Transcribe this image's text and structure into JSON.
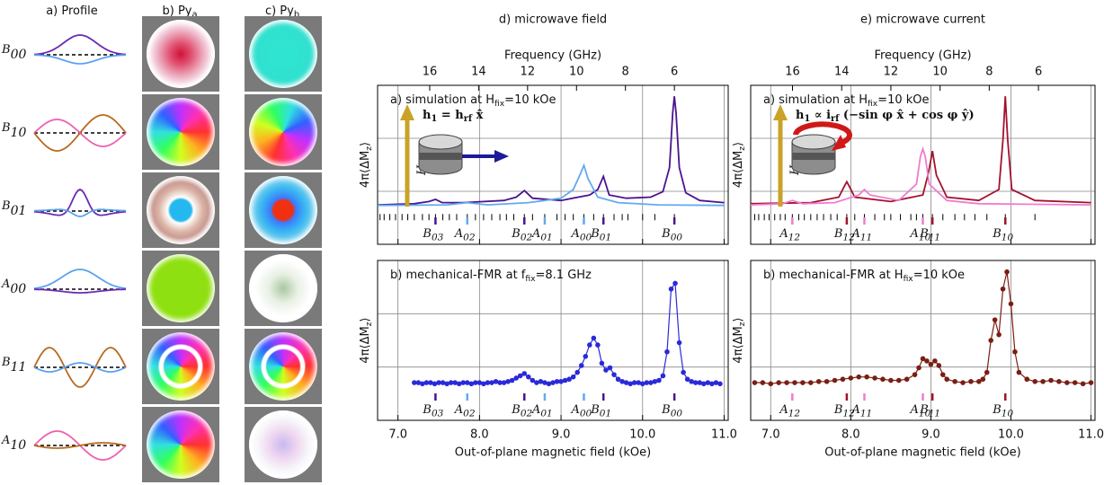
{
  "profile_panel": {
    "headers": [
      [
        "a) Profile"
      ],
      [
        "b) Py",
        "a"
      ],
      [
        "c) Py",
        "b"
      ]
    ],
    "modes": [
      {
        "label": [
          "B",
          "00"
        ],
        "color": "#6b2bb5"
      },
      {
        "label": [
          "B",
          "10"
        ],
        "color": "#b86a1e"
      },
      {
        "label": [
          "B",
          "01"
        ],
        "color": "#6b2bb5"
      },
      {
        "label": [
          "A",
          "00"
        ],
        "color": "#5aa2f2"
      },
      {
        "label": [
          "B",
          "11"
        ],
        "color": "#b86a1e"
      },
      {
        "label": [
          "A",
          "10"
        ],
        "color": "#f060b0"
      }
    ]
  },
  "chart_data": [
    {
      "type": "line",
      "title": "d) microwave field",
      "x2label": "Frequency (GHz)",
      "x2lim": [
        18.13,
        3.8
      ],
      "x2ticks": [
        16,
        14,
        12,
        10,
        8,
        6
      ],
      "xlabel": "Out-of-plane magnetic field (kOe)",
      "xlim": [
        6.75,
        11.05
      ],
      "xticks": [
        {
          "value": 7,
          "label": "7.0"
        },
        {
          "value": 8,
          "label": "8.0"
        },
        {
          "value": 9,
          "label": "9.0"
        },
        {
          "value": 10,
          "label": "10.0"
        },
        {
          "value": 11,
          "label": "11.0"
        }
      ],
      "ylabel": [
        "4π⟨ΔM",
        "z",
        "⟩"
      ],
      "grid": true,
      "subplots": [
        {
          "type": "line",
          "annotation": [
            "a) simulation at H",
            "fix",
            "=10 kOe"
          ],
          "ylim": [
            -0.35,
            1.1
          ],
          "field_label": [
            "h",
            "1",
            " = h",
            "rf",
            " x̂"
          ],
          "field_color": "#3a3ae0",
          "hext_label": [
            "H",
            "ext"
          ],
          "series": [
            {
              "color": "#4a1590",
              "x": [
                6.75,
                7.2,
                7.38,
                7.46,
                7.54,
                7.8,
                8.3,
                8.45,
                8.55,
                8.65,
                9.0,
                9.35,
                9.45,
                9.52,
                9.59,
                9.8,
                10.1,
                10.25,
                10.33,
                10.37,
                10.39,
                10.41,
                10.45,
                10.53,
                10.7,
                11.0
              ],
              "values": [
                0.01,
                0.02,
                0.04,
                0.06,
                0.03,
                0.03,
                0.05,
                0.08,
                0.14,
                0.07,
                0.05,
                0.1,
                0.15,
                0.27,
                0.1,
                0.07,
                0.08,
                0.13,
                0.35,
                0.85,
                1.0,
                0.85,
                0.35,
                0.12,
                0.05,
                0.03
              ]
            },
            {
              "color": "#62aaf0",
              "x": [
                6.75,
                7.6,
                7.85,
                8.1,
                8.6,
                8.8,
                9.0,
                9.15,
                9.23,
                9.28,
                9.33,
                9.45,
                9.7,
                10.2,
                11.0
              ],
              "values": [
                0.005,
                0.01,
                0.03,
                0.01,
                0.03,
                0.05,
                0.07,
                0.15,
                0.28,
                0.37,
                0.25,
                0.08,
                0.03,
                0.01,
                0.005
              ]
            }
          ],
          "rug": [
            6.78,
            6.83,
            6.9,
            6.97,
            7.05,
            7.12,
            7.2,
            7.3,
            7.38,
            7.46,
            7.55,
            7.63,
            7.72,
            7.85,
            7.95,
            8.05,
            8.15,
            8.25,
            8.33,
            8.42,
            8.55,
            8.65,
            8.8,
            8.95,
            9.05,
            9.15,
            9.28,
            9.4,
            9.52,
            9.65,
            9.75,
            9.82,
            10.0,
            10.15,
            10.39
          ],
          "mode_labels": [
            {
              "label": [
                "B",
                "03"
              ],
              "x": 7.46,
              "color": "#4a1590"
            },
            {
              "label": [
                "A",
                "02"
              ],
              "x": 7.85,
              "color": "#62aaf0"
            },
            {
              "label": [
                "B",
                "02"
              ],
              "x": 8.55,
              "color": "#4a1590"
            },
            {
              "label": [
                "A",
                "01"
              ],
              "x": 8.8,
              "color": "#62aaf0"
            },
            {
              "label": [
                "A",
                "00"
              ],
              "x": 9.28,
              "color": "#62aaf0"
            },
            {
              "label": [
                "B",
                "01"
              ],
              "x": 9.52,
              "color": "#4a1590"
            },
            {
              "label": [
                "B",
                "00"
              ],
              "x": 10.39,
              "color": "#4a1590"
            }
          ]
        },
        {
          "type": "line",
          "markers": true,
          "annotation": [
            "b) mechanical-FMR at f",
            "fix",
            "=8.1 GHz"
          ],
          "ylim": [
            -0.3,
            1.1
          ],
          "series": [
            {
              "color": "#2a2ad8",
              "x": [
                7.2,
                7.25,
                7.3,
                7.35,
                7.4,
                7.45,
                7.5,
                7.55,
                7.6,
                7.65,
                7.7,
                7.75,
                7.8,
                7.85,
                7.9,
                7.95,
                8.0,
                8.05,
                8.1,
                8.15,
                8.2,
                8.25,
                8.3,
                8.35,
                8.4,
                8.45,
                8.5,
                8.55,
                8.6,
                8.65,
                8.7,
                8.75,
                8.8,
                8.85,
                8.9,
                8.95,
                9.0,
                9.05,
                9.1,
                9.15,
                9.2,
                9.25,
                9.3,
                9.35,
                9.4,
                9.45,
                9.5,
                9.55,
                9.6,
                9.65,
                9.7,
                9.75,
                9.8,
                9.85,
                9.9,
                9.95,
                10.0,
                10.05,
                10.1,
                10.15,
                10.2,
                10.25,
                10.3,
                10.35,
                10.4,
                10.45,
                10.5,
                10.55,
                10.6,
                10.65,
                10.7,
                10.75,
                10.8,
                10.85,
                10.9,
                10.95
              ],
              "values": [
                0.03,
                0.03,
                0.02,
                0.03,
                0.03,
                0.02,
                0.03,
                0.03,
                0.02,
                0.03,
                0.03,
                0.02,
                0.03,
                0.03,
                0.02,
                0.03,
                0.03,
                0.02,
                0.03,
                0.03,
                0.04,
                0.03,
                0.03,
                0.04,
                0.05,
                0.07,
                0.09,
                0.11,
                0.08,
                0.05,
                0.03,
                0.04,
                0.03,
                0.02,
                0.03,
                0.04,
                0.04,
                0.05,
                0.06,
                0.08,
                0.12,
                0.18,
                0.26,
                0.36,
                0.42,
                0.36,
                0.2,
                0.14,
                0.16,
                0.1,
                0.06,
                0.04,
                0.03,
                0.02,
                0.03,
                0.03,
                0.02,
                0.03,
                0.03,
                0.04,
                0.05,
                0.09,
                0.3,
                0.85,
                0.9,
                0.38,
                0.12,
                0.06,
                0.04,
                0.03,
                0.03,
                0.02,
                0.03,
                0.02,
                0.03,
                0.02
              ]
            }
          ],
          "mode_labels": [
            {
              "label": [
                "B",
                "03"
              ],
              "x": 7.46,
              "color": "#4a1590"
            },
            {
              "label": [
                "A",
                "02"
              ],
              "x": 7.85,
              "color": "#62aaf0"
            },
            {
              "label": [
                "B",
                "02"
              ],
              "x": 8.55,
              "color": "#4a1590"
            },
            {
              "label": [
                "A",
                "01"
              ],
              "x": 8.8,
              "color": "#62aaf0"
            },
            {
              "label": [
                "A",
                "00"
              ],
              "x": 9.28,
              "color": "#62aaf0"
            },
            {
              "label": [
                "B",
                "01"
              ],
              "x": 9.52,
              "color": "#4a1590"
            },
            {
              "label": [
                "B",
                "00"
              ],
              "x": 10.39,
              "color": "#4a1590"
            }
          ]
        }
      ]
    },
    {
      "type": "line",
      "title": "e) microwave current",
      "x2label": "Frequency (GHz)",
      "x2lim": [
        17.7,
        3.7
      ],
      "x2ticks": [
        16,
        14,
        12,
        10,
        8,
        6
      ],
      "xlabel": "Out-of-plane magnetic field (kOe)",
      "xlim": [
        6.75,
        11.05
      ],
      "xticks": [
        {
          "value": 7,
          "label": "7.0"
        },
        {
          "value": 8,
          "label": "8.0"
        },
        {
          "value": 9,
          "label": "9.0"
        },
        {
          "value": 10,
          "label": "10.0"
        },
        {
          "value": 11,
          "label": "11.0"
        }
      ],
      "ylabel": [
        "4π⟨ΔM",
        "z",
        "⟩"
      ],
      "grid": true,
      "subplots": [
        {
          "type": "line",
          "annotation": [
            "a) simulation at H",
            "fix",
            "=10 kOe"
          ],
          "ylim": [
            -0.35,
            1.1
          ],
          "field_label": [
            "h",
            "1",
            " ∝ i",
            "rf",
            " (−sin φ x̂ + cos φ ŷ)"
          ],
          "field_color": "#e02020",
          "hext_label": [
            "H",
            "ext"
          ],
          "series": [
            {
              "color": "#a3122f",
              "x": [
                6.75,
                7.5,
                7.85,
                7.92,
                7.95,
                7.98,
                8.05,
                8.5,
                8.9,
                8.97,
                9.02,
                9.07,
                9.2,
                9.6,
                9.85,
                9.9,
                9.93,
                9.96,
                10.01,
                10.3,
                11.0
              ],
              "values": [
                0.02,
                0.03,
                0.08,
                0.18,
                0.22,
                0.18,
                0.08,
                0.04,
                0.1,
                0.3,
                0.5,
                0.28,
                0.08,
                0.05,
                0.15,
                0.6,
                1.0,
                0.6,
                0.15,
                0.05,
                0.03
              ]
            },
            {
              "color": "#f07cd0",
              "x": [
                6.75,
                7.15,
                7.27,
                7.4,
                7.8,
                8.1,
                8.17,
                8.24,
                8.6,
                8.82,
                8.87,
                8.9,
                8.93,
                8.98,
                9.2,
                9.6,
                11.0
              ],
              "values": [
                0.01,
                0.02,
                0.05,
                0.02,
                0.03,
                0.1,
                0.15,
                0.1,
                0.05,
                0.2,
                0.45,
                0.52,
                0.45,
                0.2,
                0.05,
                0.02,
                0.01
              ]
            }
          ],
          "rug": [
            6.8,
            6.85,
            6.92,
            6.98,
            7.05,
            7.12,
            7.18,
            7.27,
            7.35,
            7.42,
            7.5,
            7.58,
            7.66,
            7.75,
            7.83,
            7.95,
            8.05,
            8.17,
            8.3,
            8.42,
            8.5,
            8.62,
            8.75,
            8.82,
            8.9,
            9.02,
            9.15,
            9.3,
            9.42,
            9.55,
            9.7,
            9.93,
            10.3
          ],
          "mode_labels": [
            {
              "label": [
                "A",
                "12"
              ],
              "x": 7.27,
              "color": "#f07cd0"
            },
            {
              "label": [
                "B",
                "12"
              ],
              "x": 7.95,
              "color": "#a3122f"
            },
            {
              "label": [
                "A",
                "11"
              ],
              "x": 8.17,
              "color": "#f07cd0"
            },
            {
              "label": [
                "A",
                "10"
              ],
              "x": 8.9,
              "color": "#f07cd0"
            },
            {
              "label": [
                "B",
                "11"
              ],
              "x": 9.02,
              "color": "#a3122f"
            },
            {
              "label": [
                "B",
                "10"
              ],
              "x": 9.93,
              "color": "#a3122f"
            }
          ]
        },
        {
          "type": "line",
          "markers": true,
          "annotation": [
            "b) mechanical-FMR at H",
            "fix",
            "=10 kOe"
          ],
          "ylim": [
            -0.3,
            1.1
          ],
          "series": [
            {
              "color": "#7a1e14",
              "x": [
                6.8,
                6.9,
                7.0,
                7.1,
                7.2,
                7.3,
                7.4,
                7.5,
                7.6,
                7.7,
                7.8,
                7.9,
                8.0,
                8.1,
                8.2,
                8.3,
                8.4,
                8.5,
                8.6,
                8.7,
                8.8,
                8.85,
                8.9,
                8.95,
                9.0,
                9.05,
                9.1,
                9.15,
                9.2,
                9.3,
                9.4,
                9.5,
                9.6,
                9.65,
                9.7,
                9.75,
                9.8,
                9.85,
                9.9,
                9.95,
                10.0,
                10.05,
                10.1,
                10.2,
                10.3,
                10.4,
                10.5,
                10.6,
                10.7,
                10.8,
                10.9,
                11.0
              ],
              "values": [
                0.03,
                0.03,
                0.02,
                0.03,
                0.03,
                0.03,
                0.03,
                0.03,
                0.04,
                0.04,
                0.05,
                0.06,
                0.07,
                0.08,
                0.08,
                0.07,
                0.06,
                0.05,
                0.05,
                0.06,
                0.1,
                0.16,
                0.24,
                0.22,
                0.19,
                0.22,
                0.18,
                0.1,
                0.06,
                0.04,
                0.03,
                0.04,
                0.04,
                0.06,
                0.12,
                0.4,
                0.58,
                0.45,
                0.85,
                1.0,
                0.72,
                0.3,
                0.12,
                0.06,
                0.04,
                0.04,
                0.05,
                0.04,
                0.03,
                0.03,
                0.02,
                0.03
              ]
            }
          ],
          "mode_labels": [
            {
              "label": [
                "A",
                "12"
              ],
              "x": 7.27,
              "color": "#f07cd0"
            },
            {
              "label": [
                "B",
                "12"
              ],
              "x": 7.95,
              "color": "#a3122f"
            },
            {
              "label": [
                "A",
                "11"
              ],
              "x": 8.17,
              "color": "#f07cd0"
            },
            {
              "label": [
                "A",
                "10"
              ],
              "x": 8.9,
              "color": "#f07cd0"
            },
            {
              "label": [
                "B",
                "11"
              ],
              "x": 9.02,
              "color": "#a3122f"
            },
            {
              "label": [
                "B",
                "10"
              ],
              "x": 9.93,
              "color": "#a3122f"
            }
          ]
        }
      ]
    }
  ]
}
